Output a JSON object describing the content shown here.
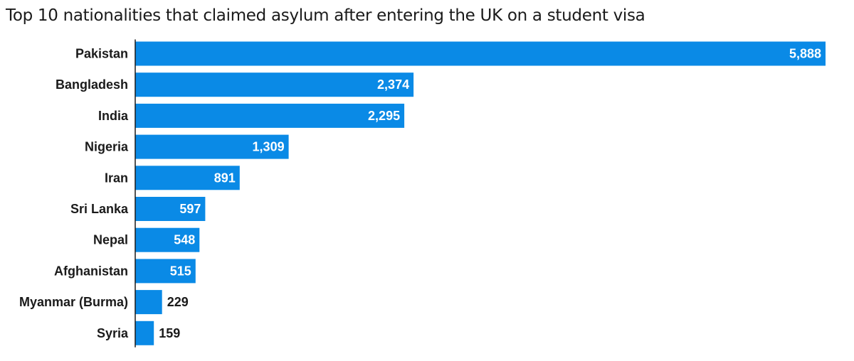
{
  "chart_data": {
    "type": "bar",
    "orientation": "horizontal",
    "title": "Top 10 nationalities that claimed asylum after entering the UK on a student visa",
    "categories": [
      "Pakistan",
      "Bangladesh",
      "India",
      "Nigeria",
      "Iran",
      "Sri Lanka",
      "Nepal",
      "Afghanistan",
      "Myanmar (Burma)",
      "Syria"
    ],
    "values": [
      5888,
      2374,
      2295,
      1309,
      891,
      597,
      548,
      515,
      229,
      159
    ],
    "value_labels": [
      "5,888",
      "2,374",
      "2,295",
      "1,309",
      "891",
      "597",
      "548",
      "515",
      "229",
      "159"
    ],
    "xlim": [
      0,
      5888
    ],
    "grid": false,
    "legend": "none",
    "bar_color": "#0a8ae6",
    "axis_color": "#1a1a1a",
    "label_color_inside": "#ffffff",
    "label_color_outside": "#1a1a1a"
  }
}
